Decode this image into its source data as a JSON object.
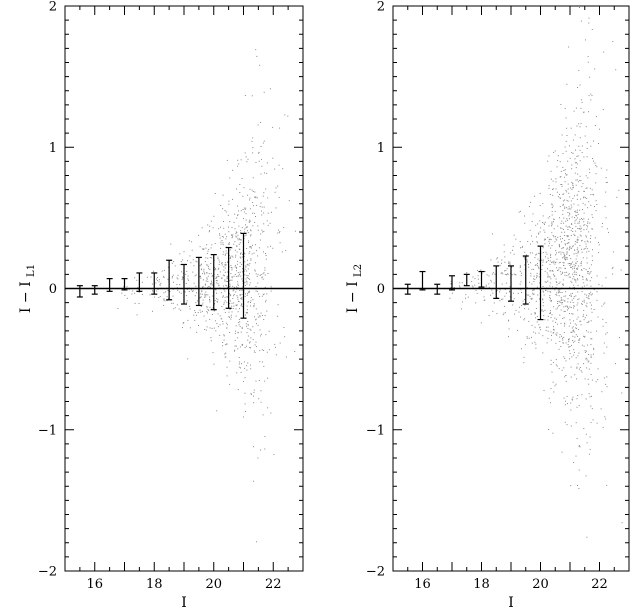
{
  "chart_data": [
    {
      "type": "scatter",
      "xlabel": "I",
      "ylabel_main": "I − I",
      "ylabel_sub": "L1",
      "xlim": [
        15,
        23
      ],
      "ylim": [
        -2,
        2
      ],
      "x_ticks": [
        16,
        18,
        20,
        22
      ],
      "x_minor_step": 0.5,
      "y_ticks": [
        -2,
        -1,
        0,
        1,
        2
      ],
      "y_tick_labels": [
        "−2",
        "−1",
        "0",
        "1",
        "2"
      ],
      "y_minor_step": 0.1,
      "reference_line_y": 0,
      "grid": false,
      "point_color": "#8a8a8a",
      "errorbars": {
        "x": [
          15.5,
          16.0,
          16.5,
          17.0,
          17.5,
          18.0,
          18.5,
          19.0,
          19.5,
          20.0,
          20.5,
          21.0
        ],
        "low": [
          -0.06,
          -0.04,
          -0.02,
          -0.01,
          -0.02,
          -0.04,
          -0.08,
          -0.11,
          -0.12,
          -0.15,
          -0.14,
          -0.21
        ],
        "high": [
          0.02,
          0.02,
          0.07,
          0.07,
          0.11,
          0.11,
          0.2,
          0.17,
          0.22,
          0.24,
          0.29,
          0.39
        ]
      },
      "scatter_profile": {
        "x": [
          17.0,
          17.5,
          18.0,
          18.5,
          19.0,
          19.5,
          20.0,
          20.5,
          21.0,
          21.5,
          22.0,
          22.5
        ],
        "spread": [
          0.05,
          0.06,
          0.08,
          0.1,
          0.13,
          0.17,
          0.22,
          0.3,
          0.4,
          0.5,
          0.65,
          0.8
        ],
        "center": [
          0.0,
          0.0,
          0.01,
          0.02,
          0.03,
          0.04,
          0.06,
          0.08,
          0.1,
          0.14,
          0.2,
          0.25
        ],
        "density": [
          3,
          5,
          8,
          12,
          18,
          28,
          45,
          65,
          85,
          50,
          15,
          4
        ]
      }
    },
    {
      "type": "scatter",
      "xlabel": "I",
      "ylabel_main": "I − I",
      "ylabel_sub": "L2",
      "xlim": [
        15,
        23
      ],
      "ylim": [
        -2,
        2
      ],
      "x_ticks": [
        16,
        18,
        20,
        22
      ],
      "x_minor_step": 0.5,
      "y_ticks": [
        -2,
        -1,
        0,
        1,
        2
      ],
      "y_tick_labels": [
        "−2",
        "−1",
        "0",
        "1",
        "2"
      ],
      "y_minor_step": 0.1,
      "reference_line_y": 0,
      "grid": false,
      "point_color": "#8a8a8a",
      "errorbars": {
        "x": [
          15.5,
          16.0,
          16.5,
          17.0,
          17.5,
          18.0,
          18.5,
          19.0,
          19.5,
          20.0
        ],
        "low": [
          -0.04,
          -0.01,
          -0.04,
          -0.01,
          0.02,
          0.01,
          -0.07,
          -0.09,
          -0.11,
          -0.22
        ],
        "high": [
          0.03,
          0.12,
          0.03,
          0.09,
          0.1,
          0.12,
          0.16,
          0.16,
          0.23,
          0.3
        ]
      },
      "scatter_profile": {
        "x": [
          17.0,
          17.5,
          18.0,
          18.5,
          19.0,
          19.5,
          20.0,
          20.5,
          21.0,
          21.5,
          22.0,
          22.5
        ],
        "spread": [
          0.06,
          0.07,
          0.09,
          0.12,
          0.16,
          0.22,
          0.3,
          0.42,
          0.55,
          0.65,
          0.75,
          0.85
        ],
        "center": [
          0.0,
          0.01,
          0.02,
          0.03,
          0.04,
          0.06,
          0.08,
          0.12,
          0.15,
          0.18,
          0.2,
          0.2
        ],
        "density": [
          3,
          5,
          8,
          12,
          18,
          28,
          45,
          80,
          120,
          90,
          25,
          5
        ]
      }
    }
  ]
}
